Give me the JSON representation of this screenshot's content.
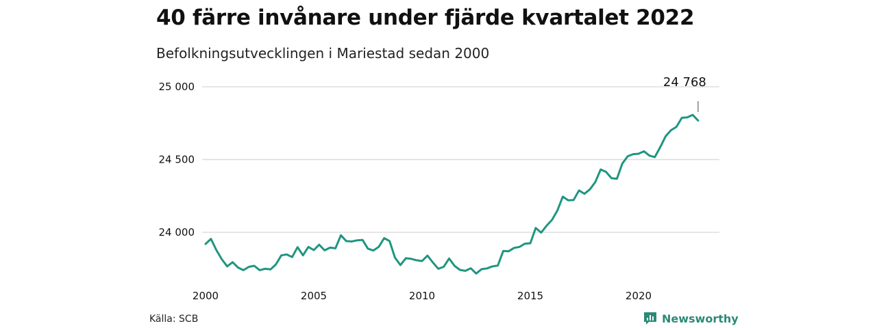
{
  "title": "40 färre invånare under fjärde kvartalet 2022",
  "subtitle": "Befolkningsutvecklingen i Mariestad sedan 2000",
  "source": "Källa: SCB",
  "brand": {
    "name": "Newsworthy",
    "icon": "newsworthy-logo-icon"
  },
  "colors": {
    "line": "#1f9580",
    "grid": "#dddddd",
    "brand": "#2b8a78"
  },
  "chart_data": {
    "type": "line",
    "title": "40 färre invånare under fjärde kvartalet 2022",
    "subtitle": "Befolkningsutvecklingen i Mariestad sedan 2000",
    "xlabel": "",
    "ylabel": "",
    "grid": true,
    "xlim": [
      2000,
      2023.6
    ],
    "ylim": [
      23700,
      25050
    ],
    "xticks": [
      2000,
      2005,
      2010,
      2015,
      2020
    ],
    "xtick_labels": [
      "2000",
      "2005",
      "2010",
      "2015",
      "2020"
    ],
    "yticks": [
      24000,
      24500,
      25000
    ],
    "ytick_labels": [
      "24 000",
      "24 500",
      "25 000"
    ],
    "annotation": {
      "x": 2022.75,
      "value": 24768,
      "label": "24 768"
    },
    "series": [
      {
        "x": [
          2000.0,
          2000.25,
          2000.5,
          2000.75,
          2001.0,
          2001.25,
          2001.5,
          2001.75,
          2002.0,
          2002.25,
          2002.5,
          2002.75,
          2003.0,
          2003.25,
          2003.5,
          2003.75,
          2004.0,
          2004.25,
          2004.5,
          2004.75,
          2005.0,
          2005.25,
          2005.5,
          2005.75,
          2006.0,
          2006.25,
          2006.5,
          2006.75,
          2007.0,
          2007.25,
          2007.5,
          2007.75,
          2008.0,
          2008.25,
          2008.5,
          2008.75,
          2009.0,
          2009.25,
          2009.5,
          2009.75,
          2010.0,
          2010.25,
          2010.5,
          2010.75,
          2011.0,
          2011.25,
          2011.5,
          2011.75,
          2012.0,
          2012.25,
          2012.5,
          2012.75,
          2013.0,
          2013.25,
          2013.5,
          2013.75,
          2014.0,
          2014.25,
          2014.5,
          2014.75,
          2015.0,
          2015.25,
          2015.5,
          2015.75,
          2016.0,
          2016.25,
          2016.5,
          2016.75,
          2017.0,
          2017.25,
          2017.5,
          2017.75,
          2018.0,
          2018.25,
          2018.5,
          2018.75,
          2019.0,
          2019.25,
          2019.5,
          2019.75,
          2020.0,
          2020.25,
          2020.5,
          2020.75,
          2021.0,
          2021.25,
          2021.5,
          2021.75,
          2022.0,
          2022.25,
          2022.5,
          2022.75
        ],
        "values": [
          23920,
          23955,
          23878,
          23815,
          23766,
          23795,
          23758,
          23740,
          23763,
          23770,
          23740,
          23750,
          23745,
          23780,
          23842,
          23848,
          23830,
          23898,
          23842,
          23900,
          23878,
          23915,
          23876,
          23895,
          23890,
          23980,
          23940,
          23937,
          23945,
          23948,
          23888,
          23875,
          23900,
          23960,
          23940,
          23826,
          23775,
          23822,
          23818,
          23808,
          23803,
          23840,
          23793,
          23750,
          23763,
          23820,
          23770,
          23742,
          23735,
          23753,
          23717,
          23747,
          23752,
          23766,
          23772,
          23872,
          23870,
          23893,
          23900,
          23922,
          23925,
          24030,
          23998,
          24045,
          24085,
          24150,
          24245,
          24220,
          24222,
          24288,
          24265,
          24295,
          24345,
          24432,
          24415,
          24372,
          24368,
          24473,
          24523,
          24537,
          24540,
          24557,
          24527,
          24517,
          24585,
          24660,
          24702,
          24725,
          24787,
          24790,
          24807,
          24768
        ]
      }
    ]
  }
}
